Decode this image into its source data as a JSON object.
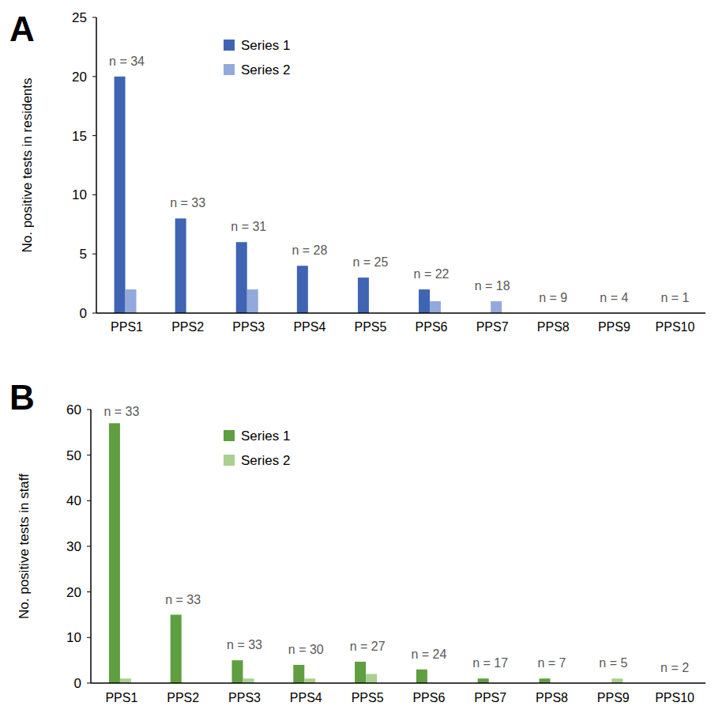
{
  "chart_data": [
    {
      "type": "bar",
      "panel_label": "A",
      "y_label": "No. positive tests in residents",
      "categories": [
        "PPS1",
        "PPS2",
        "PPS3",
        "PPS4",
        "PPS5",
        "PPS6",
        "PPS7",
        "PPS8",
        "PPS9",
        "PPS10"
      ],
      "series": [
        {
          "name": "Series 1",
          "color": "#3f64b4",
          "values": [
            20,
            8,
            6,
            4,
            3,
            2,
            0,
            0,
            0,
            0
          ]
        },
        {
          "name": "Series 2",
          "color": "#92a9dc",
          "values": [
            2,
            0,
            2,
            0,
            0,
            1,
            1,
            0,
            0,
            0
          ]
        }
      ],
      "annotations": [
        "n = 34",
        "n = 33",
        "n = 31",
        "n = 28",
        "n = 25",
        "n = 22",
        "n = 18",
        "n = 9",
        "n = 4",
        "n = 1"
      ],
      "ylim": [
        0,
        25
      ],
      "yticks": [
        0,
        5,
        10,
        15,
        20,
        25
      ],
      "grid": false,
      "legend": "top-left"
    },
    {
      "type": "bar",
      "panel_label": "B",
      "y_label": "No. positive tests in staff",
      "categories": [
        "PPS1",
        "PPS2",
        "PPS3",
        "PPS4",
        "PPS5",
        "PPS6",
        "PPS7",
        "PPS8",
        "PPS9",
        "PPS10"
      ],
      "series": [
        {
          "name": "Series 1",
          "color": "#5f9e41",
          "values": [
            57,
            15,
            5,
            4,
            4.7,
            3,
            1,
            1,
            0,
            0
          ]
        },
        {
          "name": "Series 2",
          "color": "#a8d08f",
          "values": [
            1,
            0,
            1,
            1,
            2,
            0,
            0,
            0,
            1,
            0
          ]
        }
      ],
      "annotations": [
        "n = 33",
        "n = 33",
        "n = 33",
        "n = 30",
        "n = 27",
        "n = 24",
        "n = 17",
        "n = 7",
        "n = 5",
        "n = 2"
      ],
      "ylim": [
        0,
        60
      ],
      "yticks": [
        0,
        10,
        20,
        30,
        40,
        50,
        60
      ],
      "grid": false,
      "legend": "top-left"
    }
  ]
}
